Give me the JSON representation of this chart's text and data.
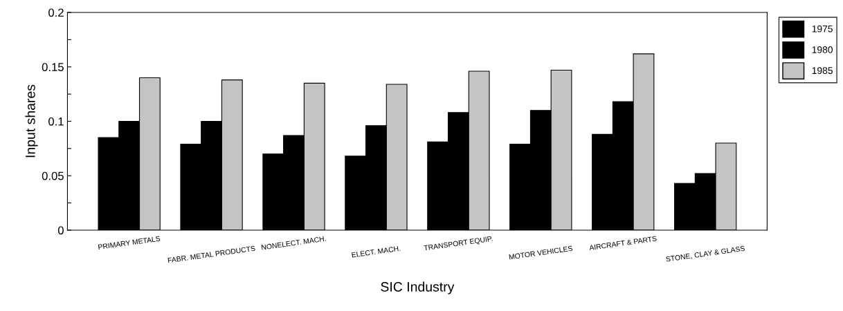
{
  "chart_data": {
    "type": "bar",
    "xlabel": "SIC Industry",
    "ylabel": "Input shares",
    "categories": [
      "PRIMARY METALS",
      "FABR. METAL PRODUCTS",
      "NONELECT. MACH.",
      "ELECT. MACH.",
      "TRANSPORT EQUIP.",
      "MOTOR VEHICLES",
      "AIRCRAFT & PARTS",
      "STONE, CLAY & GLASS"
    ],
    "series": [
      {
        "name": "1975",
        "color": "#000000",
        "values": [
          0.085,
          0.079,
          0.07,
          0.068,
          0.081,
          0.079,
          0.088,
          0.043
        ]
      },
      {
        "name": "1980",
        "color": "#000000",
        "values": [
          0.1,
          0.1,
          0.087,
          0.096,
          0.108,
          0.11,
          0.118,
          0.052
        ]
      },
      {
        "name": "1985",
        "color": "#c4c4c4",
        "values": [
          0.14,
          0.138,
          0.135,
          0.134,
          0.146,
          0.147,
          0.162,
          0.08
        ]
      }
    ],
    "ylim": [
      0,
      0.2
    ],
    "yticks": [
      {
        "value": 0,
        "label": "0"
      },
      {
        "value": 0.025,
        "label": null
      },
      {
        "value": 0.05,
        "label": "0.05"
      },
      {
        "value": 0.075,
        "label": null
      },
      {
        "value": 0.1,
        "label": "0.1"
      },
      {
        "value": 0.125,
        "label": null
      },
      {
        "value": 0.15,
        "label": "0.15"
      },
      {
        "value": 0.175,
        "label": null
      },
      {
        "value": 0.2,
        "label": "0.2"
      }
    ],
    "legend": "top right",
    "grid": false
  }
}
